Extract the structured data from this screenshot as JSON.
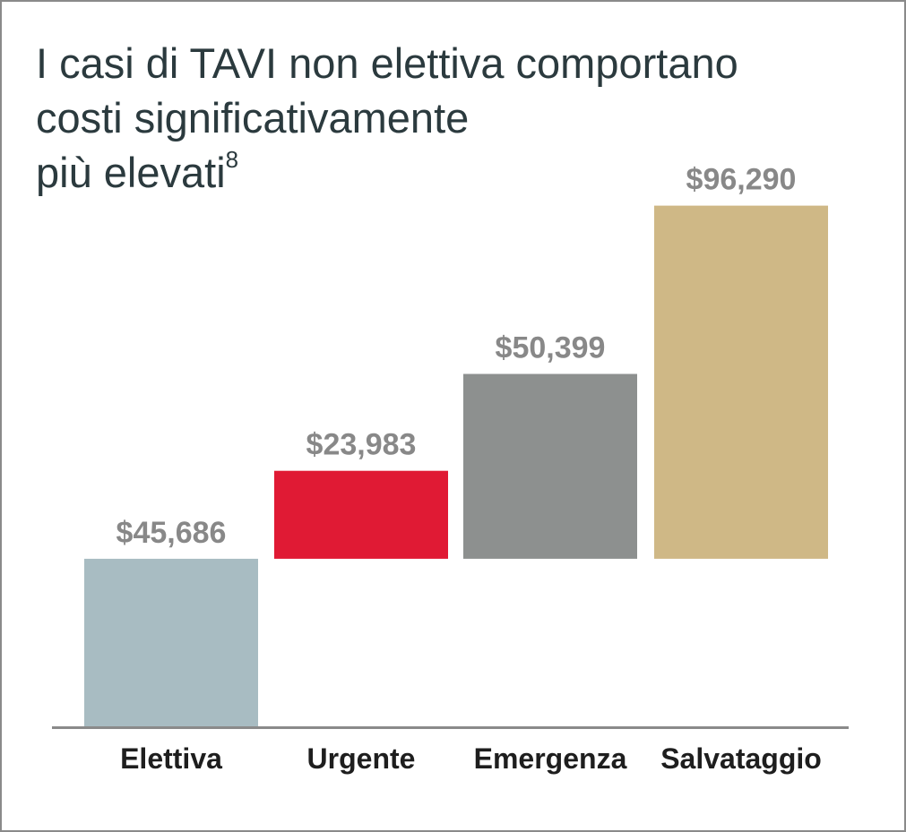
{
  "chart_data": {
    "type": "bar",
    "title_lines": [
      "I casi di TAVI non elettiva comportano",
      "costi significativamente",
      "più elevati"
    ],
    "title_superscript": "8",
    "categories": [
      "Elettiva",
      "Urgente",
      "Emergenza",
      "Salvataggio"
    ],
    "values": [
      45686,
      23983,
      50399,
      96290
    ],
    "value_labels": [
      "$45,686",
      "$23,983",
      "$50,399",
      "$96,290"
    ],
    "colors": [
      "#a8bcc2",
      "#e01a34",
      "#8d908f",
      "#cfb886"
    ],
    "waterfall": true,
    "axis_color": "#8a8a8a",
    "grid": false
  }
}
